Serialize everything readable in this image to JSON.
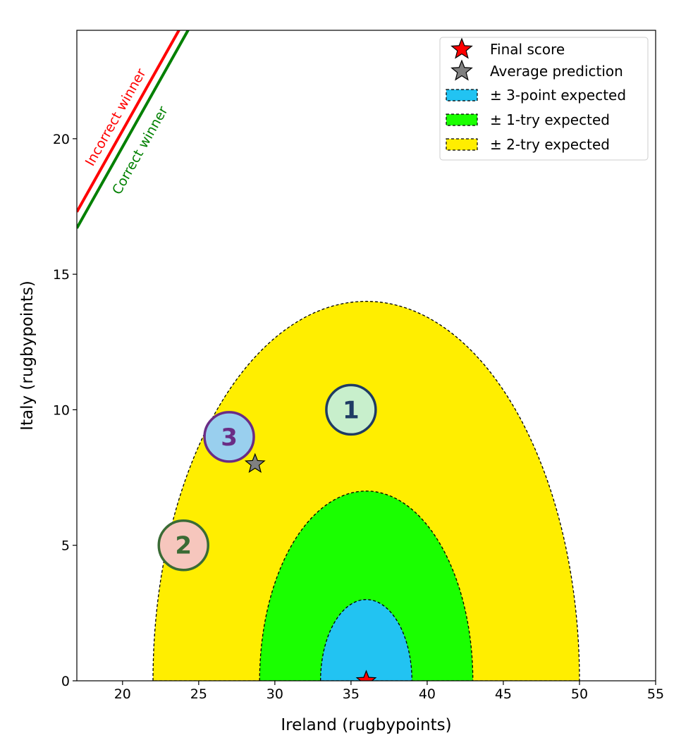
{
  "chart_data": {
    "type": "scatter",
    "xlabel": "Ireland (rugbypoints)",
    "ylabel": "Italy (rugbypoints)",
    "xlim": [
      17,
      55
    ],
    "ylim": [
      0,
      24
    ],
    "xticks": [
      20,
      25,
      30,
      35,
      40,
      45,
      50,
      55
    ],
    "yticks": [
      0,
      5,
      10,
      15,
      20
    ],
    "grid": false,
    "legend_position": "top-right",
    "final_score": {
      "x": 36,
      "y": 0,
      "label": "Final score",
      "color": "#ff0000"
    },
    "average_prediction": {
      "x": 28.7,
      "y": 8,
      "label": "Average prediction",
      "color": "#808080"
    },
    "regions": [
      {
        "label": "± 2-try expected",
        "radius": 14,
        "color": "#ffee00"
      },
      {
        "label": "± 1-try expected",
        "radius": 7,
        "color": "#1aff00"
      },
      {
        "label": "± 3-point expected",
        "radius": 3,
        "color": "#22c3f2"
      }
    ],
    "winner_lines": [
      {
        "label": "Incorrect winner",
        "color": "#ff0000",
        "offset": 0.3
      },
      {
        "label": "Correct winner",
        "color": "#008000",
        "offset": -0.3
      }
    ],
    "predictions": [
      {
        "id": "1",
        "x": 35,
        "y": 10,
        "fill": "#c8efcc",
        "stroke": "#1f3b63",
        "text_color": "#1f3b63"
      },
      {
        "id": "2",
        "x": 24,
        "y": 5,
        "fill": "#f6c6bd",
        "stroke": "#3a6b35",
        "text_color": "#3a6b35"
      },
      {
        "id": "3",
        "x": 27,
        "y": 9,
        "fill": "#99cfee",
        "stroke": "#6a2c85",
        "text_color": "#6a2c85"
      }
    ]
  }
}
